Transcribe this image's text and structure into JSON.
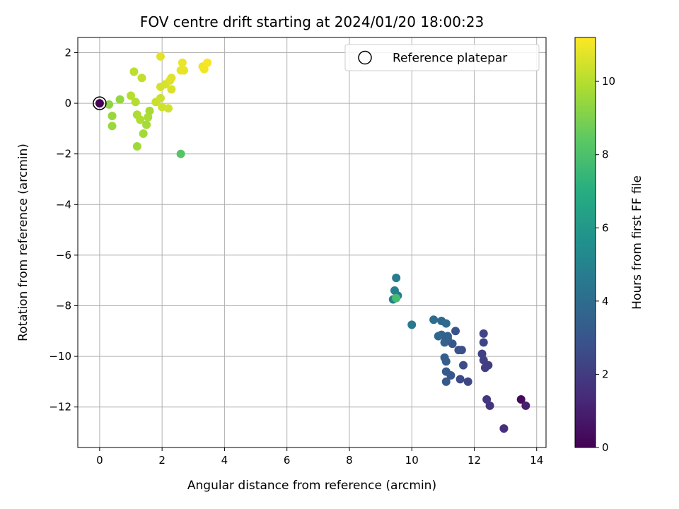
{
  "chart_data": {
    "type": "scatter",
    "title": "FOV centre drift starting at 2024/01/20 18:00:23",
    "xlabel": "Angular distance from reference (arcmin)",
    "ylabel": "Rotation from reference (arcmin)",
    "xlim": [
      -0.7,
      14.3
    ],
    "ylim": [
      -13.6,
      2.6
    ],
    "xticks": [
      0,
      2,
      4,
      6,
      8,
      10,
      12,
      14
    ],
    "yticks": [
      2,
      0,
      -2,
      -4,
      -6,
      -8,
      -10,
      -12
    ],
    "grid": true,
    "colormap": "viridis",
    "colorbar": {
      "label": "Hours from first FF file",
      "range": [
        0,
        11.2
      ],
      "ticks": [
        0,
        2,
        4,
        6,
        8,
        10
      ]
    },
    "legend": {
      "placement": "top-right",
      "entries": [
        {
          "label": "Reference platepar",
          "marker": "open-circle"
        }
      ]
    },
    "reference_point": {
      "x": 0,
      "y": 0
    },
    "points": [
      {
        "x": 0.0,
        "y": 0.0,
        "h": 0.05
      },
      {
        "x": 13.5,
        "y": -11.7,
        "h": 0.3
      },
      {
        "x": 13.65,
        "y": -11.95,
        "h": 1.0
      },
      {
        "x": 12.95,
        "y": -12.85,
        "h": 1.5
      },
      {
        "x": 12.5,
        "y": -11.95,
        "h": 1.7
      },
      {
        "x": 12.4,
        "y": -11.7,
        "h": 1.8
      },
      {
        "x": 12.45,
        "y": -10.35,
        "h": 2.0
      },
      {
        "x": 12.35,
        "y": -10.45,
        "h": 2.1
      },
      {
        "x": 12.3,
        "y": -10.15,
        "h": 2.2
      },
      {
        "x": 12.25,
        "y": -9.9,
        "h": 2.25
      },
      {
        "x": 12.3,
        "y": -9.45,
        "h": 2.3
      },
      {
        "x": 12.3,
        "y": -9.1,
        "h": 2.35
      },
      {
        "x": 11.8,
        "y": -11.0,
        "h": 2.4
      },
      {
        "x": 11.55,
        "y": -10.9,
        "h": 2.5
      },
      {
        "x": 11.65,
        "y": -10.35,
        "h": 2.6
      },
      {
        "x": 11.6,
        "y": -9.75,
        "h": 2.7
      },
      {
        "x": 11.5,
        "y": -9.75,
        "h": 2.8
      },
      {
        "x": 11.4,
        "y": -9.0,
        "h": 2.9
      },
      {
        "x": 11.3,
        "y": -9.5,
        "h": 3.0
      },
      {
        "x": 11.25,
        "y": -10.75,
        "h": 3.1
      },
      {
        "x": 11.1,
        "y": -10.6,
        "h": 3.15
      },
      {
        "x": 11.1,
        "y": -11.0,
        "h": 3.2
      },
      {
        "x": 11.1,
        "y": -10.2,
        "h": 3.3
      },
      {
        "x": 11.05,
        "y": -10.05,
        "h": 3.35
      },
      {
        "x": 11.15,
        "y": -9.3,
        "h": 3.4
      },
      {
        "x": 11.05,
        "y": -9.45,
        "h": 3.5
      },
      {
        "x": 11.15,
        "y": -9.2,
        "h": 3.55
      },
      {
        "x": 10.95,
        "y": -9.15,
        "h": 3.6
      },
      {
        "x": 10.85,
        "y": -9.2,
        "h": 3.7
      },
      {
        "x": 10.95,
        "y": -8.6,
        "h": 3.8
      },
      {
        "x": 11.1,
        "y": -8.7,
        "h": 3.9
      },
      {
        "x": 10.7,
        "y": -8.55,
        "h": 4.0
      },
      {
        "x": 10.0,
        "y": -8.75,
        "h": 4.5
      },
      {
        "x": 9.55,
        "y": -7.6,
        "h": 4.6
      },
      {
        "x": 9.5,
        "y": -6.9,
        "h": 4.7
      },
      {
        "x": 9.45,
        "y": -7.4,
        "h": 4.8
      },
      {
        "x": 9.4,
        "y": -7.75,
        "h": 4.9
      },
      {
        "x": 9.5,
        "y": -7.7,
        "h": 7.8
      },
      {
        "x": 2.6,
        "y": -2.0,
        "h": 8.2
      },
      {
        "x": 0.3,
        "y": -0.05,
        "h": 9.3
      },
      {
        "x": 0.65,
        "y": 0.15,
        "h": 9.4
      },
      {
        "x": 0.4,
        "y": -0.5,
        "h": 9.5
      },
      {
        "x": 0.4,
        "y": -0.9,
        "h": 9.55
      },
      {
        "x": 1.2,
        "y": -1.7,
        "h": 9.6
      },
      {
        "x": 1.4,
        "y": -1.2,
        "h": 9.65
      },
      {
        "x": 1.5,
        "y": -0.85,
        "h": 9.7
      },
      {
        "x": 1.6,
        "y": -0.3,
        "h": 9.75
      },
      {
        "x": 1.55,
        "y": -0.55,
        "h": 9.8
      },
      {
        "x": 1.2,
        "y": -0.45,
        "h": 9.85
      },
      {
        "x": 1.3,
        "y": -0.65,
        "h": 9.9
      },
      {
        "x": 1.15,
        "y": 0.05,
        "h": 9.95
      },
      {
        "x": 1.0,
        "y": 0.3,
        "h": 10.0
      },
      {
        "x": 1.1,
        "y": 1.25,
        "h": 10.1
      },
      {
        "x": 1.35,
        "y": 1.0,
        "h": 10.2
      },
      {
        "x": 1.8,
        "y": 0.05,
        "h": 10.3
      },
      {
        "x": 1.95,
        "y": 0.2,
        "h": 10.35
      },
      {
        "x": 2.0,
        "y": -0.15,
        "h": 10.4
      },
      {
        "x": 2.2,
        "y": -0.2,
        "h": 10.45
      },
      {
        "x": 1.95,
        "y": 0.65,
        "h": 10.5
      },
      {
        "x": 2.1,
        "y": 0.75,
        "h": 10.55
      },
      {
        "x": 2.3,
        "y": 0.55,
        "h": 10.6
      },
      {
        "x": 2.25,
        "y": 0.9,
        "h": 10.65
      },
      {
        "x": 2.3,
        "y": 1.0,
        "h": 10.7
      },
      {
        "x": 1.95,
        "y": 1.85,
        "h": 10.75
      },
      {
        "x": 2.6,
        "y": 1.3,
        "h": 10.8
      },
      {
        "x": 2.7,
        "y": 1.3,
        "h": 10.85
      },
      {
        "x": 2.65,
        "y": 1.6,
        "h": 10.9
      },
      {
        "x": 3.3,
        "y": 1.45,
        "h": 10.95
      },
      {
        "x": 3.35,
        "y": 1.35,
        "h": 11.0
      },
      {
        "x": 3.45,
        "y": 1.6,
        "h": 11.1
      }
    ]
  }
}
